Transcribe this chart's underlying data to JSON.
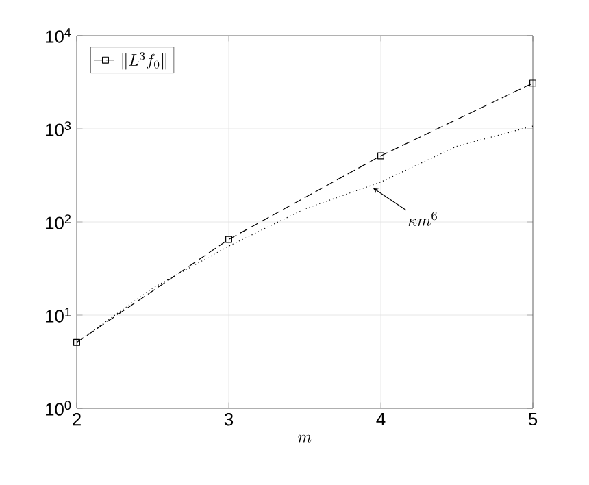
{
  "chart_data": {
    "type": "line",
    "xlabel": "m",
    "x": [
      2,
      3,
      4,
      5
    ],
    "series": [
      {
        "name": "\\left\\|L^3 f_0\\right\\|",
        "color": "#000000",
        "line_style": "dashed",
        "marker": "square",
        "values": [
          5.1,
          65,
          513,
          3090
        ]
      },
      {
        "color": "#000000",
        "line_style": "dotted",
        "marker": "none",
        "x": [
          2,
          2.5,
          3,
          3.5,
          4,
          4.5,
          5
        ],
        "values": [
          5.1,
          19.5,
          55,
          138,
          268,
          650,
          1070
        ]
      }
    ],
    "annotations": [
      {
        "text": "\\kappa m^6",
        "x": 3.95,
        "y": 230
      }
    ],
    "log": "y",
    "grid": true,
    "legend": "top left",
    "xlim": [
      2,
      5
    ],
    "ylim": [
      1,
      10000
    ],
    "xticks": [
      2,
      3,
      4,
      5
    ],
    "yticks": [
      {
        "value": 1,
        "label": "10$^{0}$"
      },
      {
        "value": 10,
        "label": "10$^{1}$"
      },
      {
        "value": 100,
        "label": "10$^{2}$"
      },
      {
        "value": 1000,
        "label": "10$^{3}$"
      },
      {
        "value": 10000,
        "label": "10$^{4}$"
      }
    ]
  }
}
